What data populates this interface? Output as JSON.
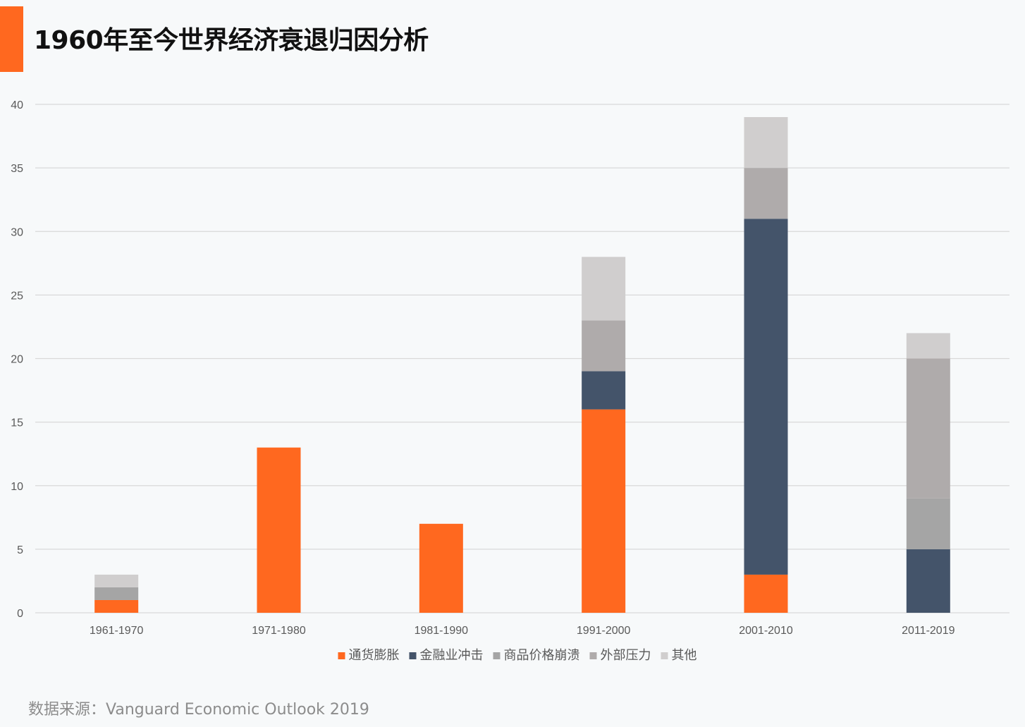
{
  "title": "1960年至今世界经济衰退归因分析",
  "source": "数据来源：Vanguard Economic Outlook 2019",
  "colors": {
    "accent": "#ff681f",
    "background": "#f7f9fa",
    "grid": "#d9d9d9",
    "axis_text": "#595959"
  },
  "chart_data": {
    "type": "bar",
    "stacked": true,
    "categories": [
      "1961-1970",
      "1971-1980",
      "1981-1990",
      "1991-2000",
      "2001-2010",
      "2011-2019"
    ],
    "series": [
      {
        "name": "通货膨胀",
        "color": "#ff681f",
        "values": [
          1,
          13,
          7,
          16,
          3,
          0
        ]
      },
      {
        "name": "金融业冲击",
        "color": "#44546a",
        "values": [
          0,
          0,
          0,
          3,
          28,
          5
        ]
      },
      {
        "name": "商品价格崩溃",
        "color": "#a5a5a5",
        "values": [
          1,
          0,
          0,
          0,
          0,
          4
        ]
      },
      {
        "name": "外部压力",
        "color": "#afabab",
        "values": [
          0,
          0,
          0,
          4,
          4,
          11
        ]
      },
      {
        "name": "其他",
        "color": "#d0cece",
        "values": [
          1,
          0,
          0,
          5,
          4,
          2
        ]
      }
    ],
    "ylim": [
      0,
      40
    ],
    "yticks": [
      0,
      5,
      10,
      15,
      20,
      25,
      30,
      35,
      40
    ],
    "grid": true,
    "legend_position": "bottom"
  }
}
